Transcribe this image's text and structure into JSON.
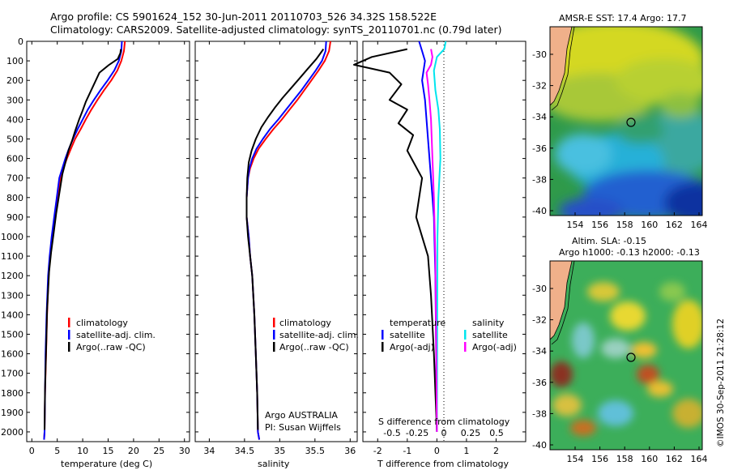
{
  "header": {
    "line1": "Argo profile: CS 5901624_152 30-Jun-2011 20110703_526 34.32S 158.522E",
    "line2": "Climatology: CARS2009. Satellite-adjusted climatology: synTS_20110701.nc (0.79d later)"
  },
  "colors": {
    "climatology": "#ff0000",
    "satellite": "#0000ff",
    "argo": "#000000",
    "sat_salinity": "#00e5ee",
    "argo_salinity": "#ff00ff"
  },
  "chart_data": [
    {
      "type": "line",
      "id": "temperature",
      "xlabel": "temperature (deg C)",
      "xlim": [
        -1,
        31
      ],
      "xticks": [
        0,
        5,
        10,
        15,
        20,
        25,
        30
      ],
      "ylim": [
        0,
        2050
      ],
      "yticks": [
        0,
        100,
        200,
        300,
        400,
        500,
        600,
        700,
        800,
        900,
        1000,
        1100,
        1200,
        1300,
        1400,
        1500,
        1600,
        1700,
        1800,
        1900,
        2000
      ],
      "legend": [
        "climatology",
        "satellite-adj. clim.",
        "Argo(..raw -QC)"
      ],
      "series": [
        {
          "name": "climatology",
          "x": [
            18.3,
            18.1,
            17.6,
            16.8,
            15.6,
            14.2,
            12.9,
            11.7,
            10.6,
            9.6,
            8.5,
            7.7,
            6.9,
            6.2,
            5.6,
            5.0,
            4.5,
            4.0,
            3.6,
            3.3,
            3.0,
            2.8,
            2.6,
            2.5,
            2.4
          ],
          "y": [
            0,
            50,
            100,
            150,
            200,
            250,
            300,
            350,
            400,
            450,
            500,
            550,
            600,
            650,
            700,
            800,
            900,
            1000,
            1100,
            1200,
            1400,
            1600,
            1800,
            2000,
            2040
          ]
        },
        {
          "name": "satellite-adj. clim.",
          "x": [
            17.7,
            17.6,
            17.1,
            16.2,
            14.9,
            13.5,
            12.2,
            11.0,
            10.0,
            9.0,
            8.1,
            7.3,
            6.6,
            6.0,
            5.4,
            4.9,
            4.4,
            3.9,
            3.5,
            3.2,
            2.9,
            2.7,
            2.6,
            2.5,
            2.4
          ],
          "y": [
            0,
            50,
            100,
            150,
            200,
            250,
            300,
            350,
            400,
            450,
            500,
            550,
            600,
            650,
            700,
            800,
            900,
            1000,
            1100,
            1200,
            1400,
            1600,
            1800,
            2000,
            2040
          ]
        },
        {
          "name": "Argo(..raw -QC)",
          "x": [
            17.5,
            17.4,
            16.9,
            15.2,
            13.3,
            12.4,
            11.5,
            10.6,
            9.9,
            9.3,
            8.5,
            7.9,
            7.2,
            6.7,
            6.0,
            5.4,
            4.8,
            4.3,
            3.8,
            3.4,
            3.0,
            2.8,
            2.6,
            2.5
          ],
          "y": [
            40,
            60,
            90,
            120,
            160,
            210,
            260,
            310,
            360,
            400,
            460,
            510,
            560,
            610,
            680,
            780,
            880,
            980,
            1080,
            1180,
            1380,
            1580,
            1780,
            1990
          ]
        }
      ]
    },
    {
      "type": "line",
      "id": "salinity",
      "xlabel": "salinity",
      "xlim": [
        33.8,
        36.1
      ],
      "xticks": [
        34,
        34.5,
        35,
        35.5,
        36
      ],
      "ylim": [
        0,
        2050
      ],
      "legend": [
        "climatology",
        "satellite-adj. clim.",
        "Argo(..raw -QC)"
      ],
      "annotation": [
        "Argo AUSTRALIA",
        "PI: Susan Wijffels"
      ],
      "series": [
        {
          "name": "climatology",
          "x": [
            35.72,
            35.7,
            35.64,
            35.55,
            35.45,
            35.35,
            35.25,
            35.14,
            35.03,
            34.91,
            34.8,
            34.7,
            34.63,
            34.58,
            34.55,
            34.53,
            34.53,
            34.56,
            34.58,
            34.61,
            34.64,
            34.66,
            34.68,
            34.69,
            34.71
          ],
          "y": [
            0,
            50,
            100,
            150,
            200,
            250,
            300,
            350,
            400,
            450,
            500,
            550,
            600,
            650,
            700,
            800,
            900,
            1000,
            1100,
            1200,
            1400,
            1600,
            1800,
            2000,
            2040
          ]
        },
        {
          "name": "satellite-adj. clim.",
          "x": [
            35.66,
            35.65,
            35.6,
            35.51,
            35.41,
            35.31,
            35.2,
            35.09,
            34.98,
            34.86,
            34.76,
            34.67,
            34.61,
            34.57,
            34.55,
            34.53,
            34.53,
            34.56,
            34.58,
            34.61,
            34.64,
            34.66,
            34.68,
            34.69,
            34.71
          ],
          "y": [
            0,
            50,
            100,
            150,
            200,
            250,
            300,
            350,
            400,
            450,
            500,
            550,
            600,
            650,
            700,
            800,
            900,
            1000,
            1100,
            1200,
            1400,
            1600,
            1800,
            2000,
            2040
          ]
        },
        {
          "name": "Argo(..raw -QC)",
          "x": [
            35.62,
            35.58,
            35.52,
            35.4,
            35.28,
            35.16,
            35.04,
            34.93,
            34.83,
            34.74,
            34.66,
            34.6,
            34.56,
            34.54,
            34.53,
            34.53,
            34.55,
            34.58,
            34.61,
            34.64,
            34.66,
            34.68,
            34.69
          ],
          "y": [
            40,
            60,
            90,
            140,
            190,
            240,
            290,
            340,
            390,
            440,
            500,
            560,
            620,
            700,
            800,
            900,
            1000,
            1100,
            1200,
            1400,
            1600,
            1800,
            1990
          ]
        }
      ]
    },
    {
      "type": "line",
      "id": "difference",
      "xlabel": "T difference from climatology",
      "xlabel_top": "S difference from climatology",
      "xlim": [
        -2.5,
        3
      ],
      "xticks": [
        -2,
        -1,
        0,
        1,
        2
      ],
      "xticks_s": [
        "-0.5",
        "-0.25",
        "0",
        "0.25",
        "0.5"
      ],
      "legend_t": [
        "temperature",
        "satellite",
        "Argo(-adj)"
      ],
      "legend_s": [
        "salinity",
        "satellite",
        "Argo(-adj)"
      ],
      "series": [
        {
          "name": "satellite",
          "x": [
            -0.6,
            -0.5,
            -0.4,
            -0.5,
            -0.4,
            -0.3,
            -0.2,
            -0.1,
            -0.05,
            0
          ],
          "y": [
            0,
            50,
            100,
            200,
            300,
            500,
            700,
            900,
            1200,
            2000
          ]
        },
        {
          "name": "Argo(-adj)",
          "x": [
            -1.0,
            -2.2,
            -2.8,
            -1.6,
            -1.2,
            -1.6,
            -1.0,
            -1.3,
            -0.8,
            -1.0,
            -0.5,
            -0.7,
            -0.3,
            -0.2,
            -0.1,
            0
          ],
          "y": [
            40,
            80,
            120,
            160,
            220,
            300,
            350,
            420,
            480,
            560,
            700,
            900,
            1100,
            1300,
            1600,
            2000
          ]
        },
        {
          "name": "satellite",
          "x": [
            0.3,
            0.25,
            0,
            -0.1,
            -0.05,
            0.05,
            0.1,
            0.12,
            0.05,
            0.02,
            0
          ],
          "y": [
            0,
            40,
            80,
            150,
            250,
            350,
            450,
            600,
            800,
            1000,
            2000
          ]
        },
        {
          "name": "Argo(-adj)",
          "x": [
            -0.2,
            -0.15,
            -0.2,
            -0.35,
            -0.3,
            -0.25,
            -0.2,
            -0.15,
            -0.1,
            -0.05,
            0
          ],
          "y": [
            40,
            80,
            120,
            160,
            220,
            300,
            400,
            600,
            800,
            1100,
            2000
          ]
        }
      ]
    }
  ],
  "maps": {
    "sst_title": "AMSR-E SST: 17.4 Argo: 17.7",
    "sla_title1": "Altim. SLA: -0.15",
    "sla_title2": "Argo h1000: -0.13 h2000: -0.13",
    "lon_ticks": [
      "154",
      "156",
      "158",
      "160",
      "162",
      "164"
    ],
    "lat_ticks": [
      "-30",
      "-32",
      "-34",
      "-36",
      "-38",
      "-40"
    ]
  },
  "credit": "©IMOS 30-Sep-2011 21:28:12"
}
